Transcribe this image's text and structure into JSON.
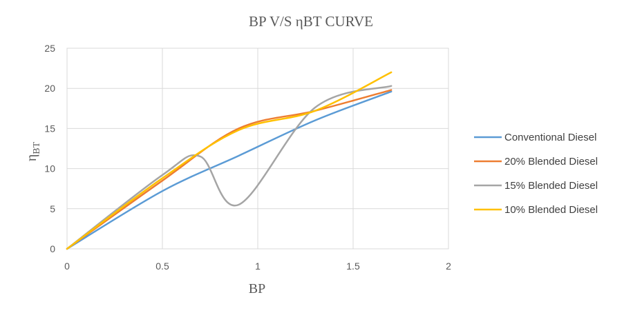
{
  "chart_data": {
    "type": "line",
    "title": "BP V/S ηBT CURVE",
    "xlabel": "BP",
    "ylabel": "η",
    "ylabel_subscript": "BT",
    "xlim": [
      0,
      2
    ],
    "ylim": [
      0,
      25
    ],
    "xticks": [
      0,
      0.5,
      1,
      1.5,
      2
    ],
    "xtick_labels": [
      "0",
      "0.5",
      "1",
      "1.5",
      "2"
    ],
    "yticks": [
      0,
      5,
      10,
      15,
      20,
      25
    ],
    "ytick_labels": [
      "0",
      "5",
      "10",
      "15",
      "20",
      "25"
    ],
    "grid": true,
    "smooth": true,
    "legend_position": "right",
    "series": [
      {
        "name": "Conventional Diesel",
        "color": "#5B9BD5",
        "x": [
          0,
          0.5,
          0.9,
          1.3,
          1.7
        ],
        "y": [
          0,
          7.2,
          11.6,
          16.0,
          19.6
        ]
      },
      {
        "name": "20% Blended Diesel",
        "color": "#ED7D31",
        "x": [
          0,
          0.5,
          0.9,
          1.3,
          1.7
        ],
        "y": [
          0,
          8.5,
          15.0,
          17.2,
          19.8
        ]
      },
      {
        "name": "15% Blended Diesel",
        "color": "#A5A5A5",
        "x": [
          0,
          0.5,
          0.7,
          0.9,
          1.3,
          1.7
        ],
        "y": [
          0,
          9.2,
          11.5,
          5.5,
          17.6,
          20.3
        ]
      },
      {
        "name": "10% Blended Diesel",
        "color": "#FFC000",
        "x": [
          0,
          0.5,
          0.9,
          1.3,
          1.7
        ],
        "y": [
          0,
          8.8,
          14.8,
          17.2,
          22.0
        ]
      }
    ]
  }
}
